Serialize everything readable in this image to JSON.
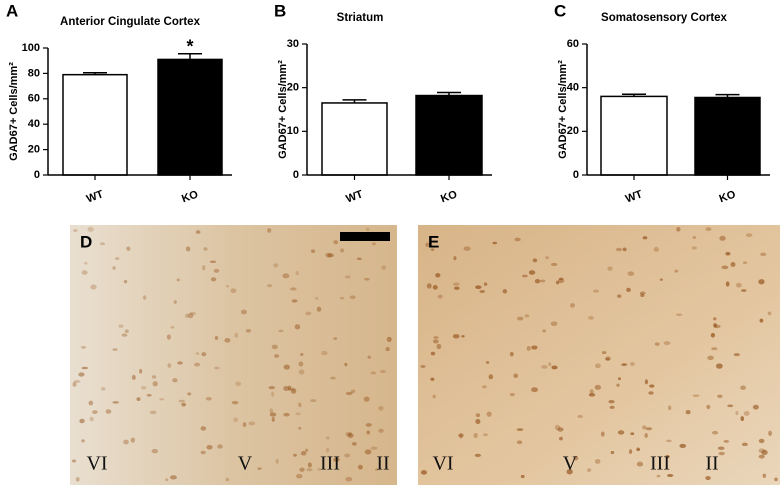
{
  "chart_data": [
    {
      "type": "bar",
      "panel": "A",
      "title": "Anterior Cingulate Cortex",
      "ylabel": "GAD67+ Cells/mm²",
      "categories": [
        "WT",
        "KO"
      ],
      "values": [
        79,
        91
      ],
      "errors": [
        1.5,
        4.5
      ],
      "colors": [
        "#ffffff",
        "#000000"
      ],
      "ylim": [
        0,
        100
      ],
      "yticks": [
        0,
        20,
        40,
        60,
        80,
        100
      ],
      "annotations": [
        "",
        "*"
      ]
    },
    {
      "type": "bar",
      "panel": "B",
      "title": "Striatum",
      "ylabel": "GAD67+ Cells/mm²",
      "categories": [
        "WT",
        "KO"
      ],
      "values": [
        16.5,
        18.2
      ],
      "errors": [
        0.7,
        0.7
      ],
      "colors": [
        "#ffffff",
        "#000000"
      ],
      "ylim": [
        0,
        30
      ],
      "yticks": [
        0,
        10,
        20,
        30
      ]
    },
    {
      "type": "bar",
      "panel": "C",
      "title": "Somatosensory Cortex",
      "ylabel": "GAD67+ Cells/mm²",
      "categories": [
        "WT",
        "KO"
      ],
      "values": [
        36,
        35.5
      ],
      "errors": [
        1,
        1.3
      ],
      "colors": [
        "#ffffff",
        "#000000"
      ],
      "ylim": [
        0,
        60
      ],
      "yticks": [
        0,
        20,
        40,
        60
      ]
    }
  ],
  "images": [
    {
      "panel": "D",
      "layers": [
        "VI",
        "V",
        "III",
        "II"
      ]
    },
    {
      "panel": "E",
      "layers": [
        "VI",
        "V",
        "III",
        "II"
      ]
    }
  ]
}
